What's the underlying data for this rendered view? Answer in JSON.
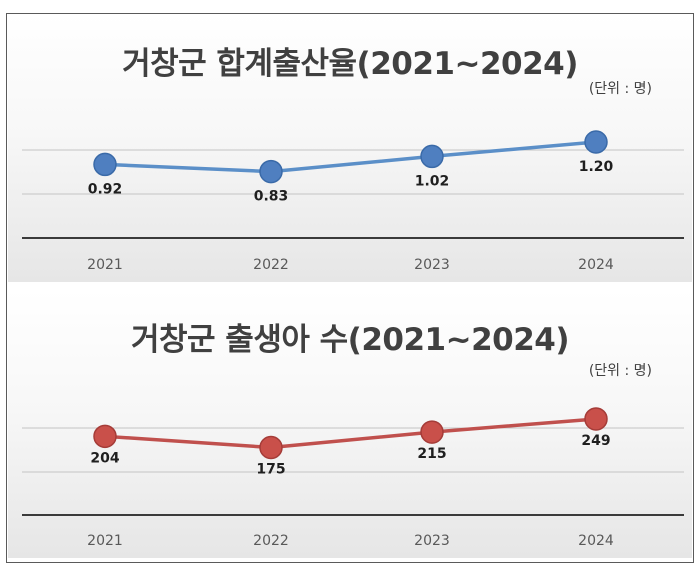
{
  "chart_data": [
    {
      "type": "line",
      "title": "거창군 합계출산율(2021~2024)",
      "unit": "(단위 : 명)",
      "categories": [
        "2021",
        "2022",
        "2023",
        "2024"
      ],
      "series": [
        {
          "values": [
            0.92,
            0.83,
            1.02,
            1.2
          ],
          "labels": [
            "0.92",
            "0.83",
            "1.02",
            "1.20"
          ]
        }
      ],
      "ylim": [
        0,
        1.7
      ],
      "grid": true,
      "colors": {
        "line": "#5b8fc8",
        "marker": "#4f7fc0",
        "marker_edge": "#3a6aa8"
      }
    },
    {
      "type": "line",
      "title": "거창군 출생아 수(2021~2024)",
      "unit": "(단위 : 명)",
      "categories": [
        "2021",
        "2022",
        "2023",
        "2024"
      ],
      "series": [
        {
          "values": [
            204,
            175,
            215,
            249
          ],
          "labels": [
            "204",
            "175",
            "215",
            "249"
          ]
        }
      ],
      "ylim": [
        0,
        350
      ],
      "grid": true,
      "colors": {
        "line": "#c0504d",
        "marker": "#c9504a",
        "marker_edge": "#a53c38"
      }
    }
  ]
}
